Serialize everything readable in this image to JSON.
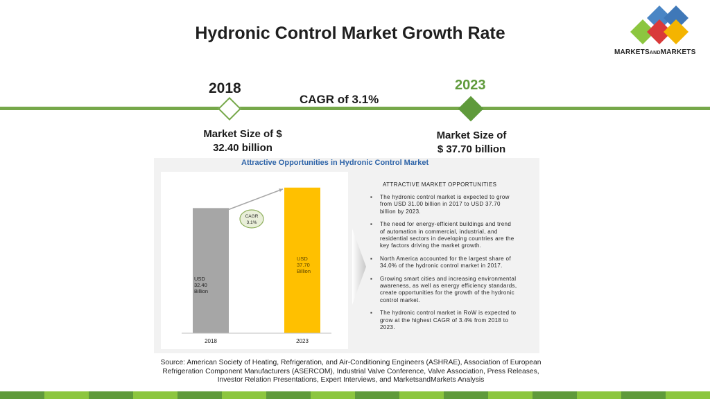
{
  "header": {
    "title": "Hydronic Control Market Growth Rate",
    "logo_text_a": "MARKETS",
    "logo_text_b": "AND",
    "logo_text_c": "MARKETS",
    "logo_colors": [
      "#4a86c5",
      "#d93a3a",
      "#8cc63f",
      "#f4b400"
    ]
  },
  "timeline": {
    "year_start": "2018",
    "year_end": "2023",
    "cagr": "CAGR of 3.1%",
    "market_start_line1": "Market Size of $",
    "market_start_line2": "32.40 billion",
    "market_end_line1": "Market Size of",
    "market_end_line2": "$ 37.70 billion",
    "accent": "#76a84a"
  },
  "infographic": {
    "title": "Attractive Opportunities in Hydronic Control Market",
    "opportunities_title": "ATTRACTIVE MARKET OPPORTUNITIES",
    "opportunities": [
      "The hydronic control market is expected to grow from USD 31.00 billion in 2017 to USD 37.70 billion by 2023.",
      "The need for energy-efficient buildings and trend of automation in commercial, industrial, and residential sectors in developing countries are the key factors driving the market growth.",
      "North America accounted for the largest share of 34.0% of the hydronic control market in 2017.",
      "Growing smart cities and increasing environmental awareness, as well as energy efficiency standards, create opportunities for the growth of the hydronic control market.",
      "The hydronic control market in RoW is expected to grow at the highest CAGR of 3.4% from 2018 to 2023."
    ]
  },
  "chart_data": {
    "type": "bar",
    "categories": [
      "2018",
      "2023"
    ],
    "values": [
      32.4,
      37.7
    ],
    "bar_labels": [
      [
        "USD",
        "32.40",
        "Billion"
      ],
      [
        "USD",
        "37.70",
        "Billion"
      ]
    ],
    "bar_colors": [
      "#a6a6a6",
      "#ffc000"
    ],
    "annotation": [
      "CAGR",
      "3.1%"
    ],
    "ylim": [
      0,
      40
    ],
    "grid": false
  },
  "source": "Source: American Society of Heating, Refrigeration, and Air-Conditioning Engineers (ASHRAE), Association of European Refrigeration Component Manufacturers (ASERCOM), Industrial Valve Conference, Valve Association, Press Releases, Investor Relation Presentations, Expert Interviews, and MarketsandMarkets Analysis",
  "footer_colors": [
    "#5f9a3b",
    "#8cc63f",
    "#5f9a3b",
    "#8cc63f",
    "#5f9a3b",
    "#8cc63f",
    "#5f9a3b",
    "#8cc63f",
    "#5f9a3b",
    "#8cc63f",
    "#5f9a3b",
    "#8cc63f",
    "#5f9a3b",
    "#8cc63f",
    "#5f9a3b",
    "#8cc63f"
  ]
}
